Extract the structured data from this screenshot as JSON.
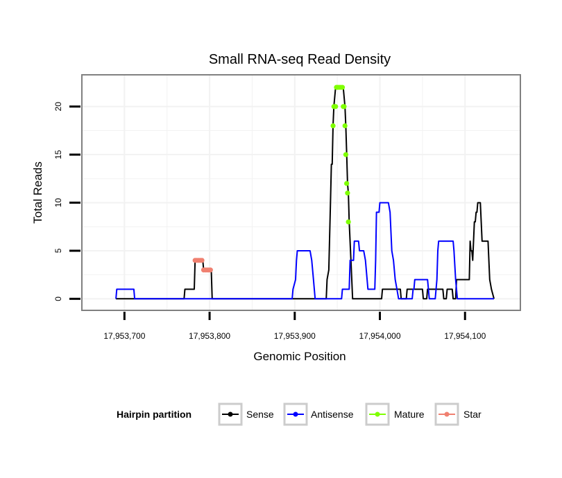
{
  "chart_data": {
    "type": "line",
    "title": "Small RNA-seq Read Density",
    "xlabel": "Genomic Position",
    "ylabel": "Total Reads",
    "xlim": [
      17953650,
      17954165
    ],
    "ylim": [
      -1.2,
      23.3
    ],
    "x_ticks": [
      17953700,
      17953800,
      17953900,
      17954000,
      17954100
    ],
    "x_tick_labels": [
      "17,953,700",
      "17,953,800",
      "17,953,900",
      "17,954,000",
      "17,954,100"
    ],
    "y_ticks": [
      0,
      5,
      10,
      15,
      20
    ],
    "y_tick_labels": [
      "0",
      "5",
      "10",
      "15",
      "20"
    ],
    "grid": true,
    "legend": {
      "title": "Hairpin partition",
      "position": "bottom",
      "entries": [
        {
          "label": "Sense",
          "color": "#000000"
        },
        {
          "label": "Antisense",
          "color": "#0000ff"
        },
        {
          "label": "Mature",
          "color": "#7fff00"
        },
        {
          "label": "Star",
          "color": "#f08070"
        }
      ]
    },
    "series": [
      {
        "name": "Sense",
        "color": "#000000",
        "points": [
          [
            17953690,
            0
          ],
          [
            17953770,
            0
          ],
          [
            17953771,
            1
          ],
          [
            17953782,
            1
          ],
          [
            17953783,
            4
          ],
          [
            17953792,
            4
          ],
          [
            17953793,
            3
          ],
          [
            17953802,
            3
          ],
          [
            17953803,
            0
          ],
          [
            17953937,
            0
          ],
          [
            17953938,
            2
          ],
          [
            17953940,
            3
          ],
          [
            17953942,
            10
          ],
          [
            17953943,
            14
          ],
          [
            17953944,
            14
          ],
          [
            17953945,
            18
          ],
          [
            17953946,
            20
          ],
          [
            17953948,
            22
          ],
          [
            17953957,
            22
          ],
          [
            17953959,
            20
          ],
          [
            17953960,
            18
          ],
          [
            17953961,
            15
          ],
          [
            17953962,
            12
          ],
          [
            17953963,
            11
          ],
          [
            17953964,
            8
          ],
          [
            17953966,
            4
          ],
          [
            17953967,
            2
          ],
          [
            17953968,
            0
          ],
          [
            17954002,
            0
          ],
          [
            17954003,
            1
          ],
          [
            17954024,
            1
          ],
          [
            17954025,
            0
          ],
          [
            17954031,
            0
          ],
          [
            17954032,
            1
          ],
          [
            17954050,
            1
          ],
          [
            17954051,
            0
          ],
          [
            17954055,
            0
          ],
          [
            17954056,
            1
          ],
          [
            17954074,
            1
          ],
          [
            17954075,
            0
          ],
          [
            17954078,
            0
          ],
          [
            17954079,
            1
          ],
          [
            17954085,
            1
          ],
          [
            17954086,
            0
          ],
          [
            17954089,
            0
          ],
          [
            17954090,
            2
          ],
          [
            17954105,
            2
          ],
          [
            17954106,
            6
          ],
          [
            17954107,
            5
          ],
          [
            17954108,
            5
          ],
          [
            17954109,
            4
          ],
          [
            17954110,
            6
          ],
          [
            17954111,
            8
          ],
          [
            17954112,
            8
          ],
          [
            17954113,
            9
          ],
          [
            17954114,
            9
          ],
          [
            17954115,
            10
          ],
          [
            17954118,
            10
          ],
          [
            17954120,
            6
          ],
          [
            17954127,
            6
          ],
          [
            17954129,
            2
          ],
          [
            17954131,
            1
          ],
          [
            17954134,
            0
          ]
        ]
      },
      {
        "name": "Antisense",
        "color": "#0000ff",
        "points": [
          [
            17953690,
            0
          ],
          [
            17953691,
            1
          ],
          [
            17953711,
            1
          ],
          [
            17953712,
            0
          ],
          [
            17953897,
            0
          ],
          [
            17953898,
            1
          ],
          [
            17953901,
            2
          ],
          [
            17953902,
            4
          ],
          [
            17953903,
            5
          ],
          [
            17953918,
            5
          ],
          [
            17953920,
            4
          ],
          [
            17953922,
            2
          ],
          [
            17953923,
            1
          ],
          [
            17953924,
            0
          ],
          [
            17953955,
            0
          ],
          [
            17953956,
            1
          ],
          [
            17953964,
            1
          ],
          [
            17953965,
            4
          ],
          [
            17953969,
            4
          ],
          [
            17953970,
            6
          ],
          [
            17953975,
            6
          ],
          [
            17953976,
            5
          ],
          [
            17953981,
            5
          ],
          [
            17953983,
            4
          ],
          [
            17953985,
            2
          ],
          [
            17953986,
            1
          ],
          [
            17953994,
            1
          ],
          [
            17953995,
            4
          ],
          [
            17953996,
            9
          ],
          [
            17953999,
            9
          ],
          [
            17954000,
            10
          ],
          [
            17954010,
            10
          ],
          [
            17954012,
            9
          ],
          [
            17954014,
            5
          ],
          [
            17954016,
            4
          ],
          [
            17954018,
            2
          ],
          [
            17954020,
            1
          ],
          [
            17954022,
            0
          ],
          [
            17954038,
            0
          ],
          [
            17954039,
            1
          ],
          [
            17954040,
            1
          ],
          [
            17954041,
            2
          ],
          [
            17954056,
            2
          ],
          [
            17954057,
            1
          ],
          [
            17954058,
            0
          ],
          [
            17954065,
            0
          ],
          [
            17954067,
            2
          ],
          [
            17954068,
            5
          ],
          [
            17954069,
            6
          ],
          [
            17954086,
            6
          ],
          [
            17954087,
            5
          ],
          [
            17954089,
            2
          ],
          [
            17954091,
            0
          ],
          [
            17954134,
            0
          ]
        ]
      },
      {
        "name": "Mature",
        "color": "#7fff00",
        "points": [
          [
            17953945,
            18
          ],
          [
            17953946,
            20
          ],
          [
            17953948,
            20
          ],
          [
            17953949,
            22
          ],
          [
            17953950,
            22
          ],
          [
            17953952,
            22
          ],
          [
            17953954,
            22
          ],
          [
            17953956,
            22
          ],
          [
            17953957,
            20
          ],
          [
            17953958,
            20
          ],
          [
            17953959,
            18
          ],
          [
            17953960,
            15
          ],
          [
            17953961,
            12
          ],
          [
            17953962,
            11
          ],
          [
            17953963,
            8
          ]
        ]
      },
      {
        "name": "Star",
        "color": "#f08070",
        "points": [
          [
            17953783,
            4
          ],
          [
            17953785,
            4
          ],
          [
            17953787,
            4
          ],
          [
            17953789,
            4
          ],
          [
            17953791,
            4
          ],
          [
            17953793,
            3
          ],
          [
            17953795,
            3
          ],
          [
            17953797,
            3
          ],
          [
            17953799,
            3
          ],
          [
            17953801,
            3
          ]
        ]
      }
    ]
  },
  "colors": {
    "panel_border": "#808080",
    "grid": "#f2f2f2",
    "legend_key_border": "#cccccc",
    "tick": "#000000"
  }
}
